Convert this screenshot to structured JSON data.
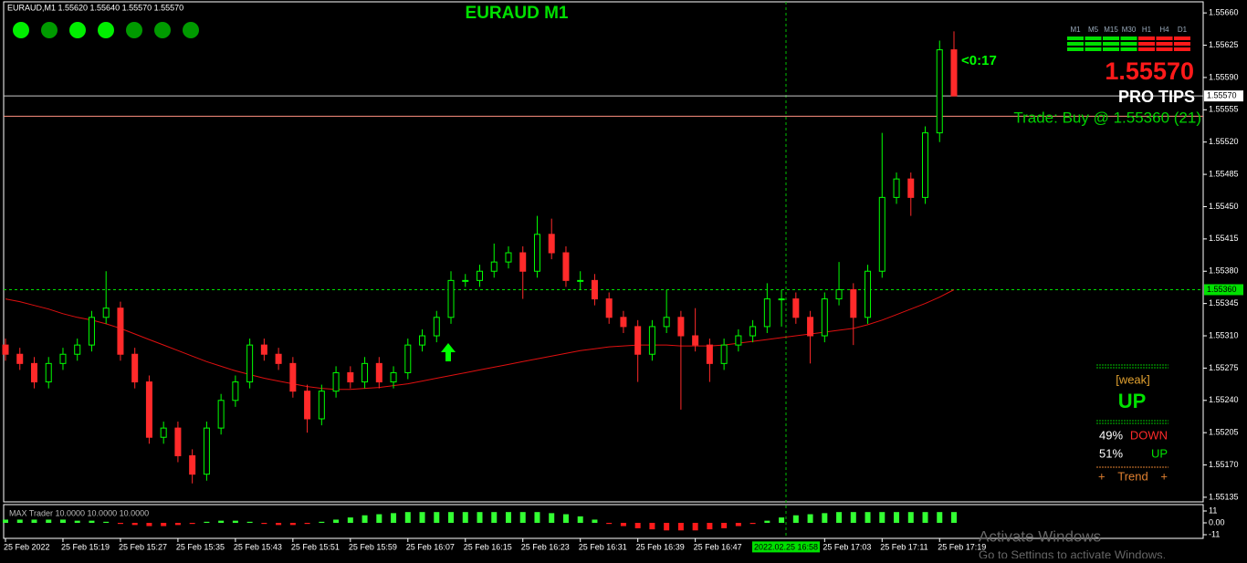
{
  "chart_data": {
    "type": "candlestick",
    "header": "EURAUD,M1  1.55620 1.55640 1.55570 1.55570",
    "title": "EURAUD M1",
    "countdown": "<0:17",
    "price": "1.55570",
    "brand": "PRO TIPS",
    "trade": "Trade: Buy @ 1.55360 (21)",
    "up_color": "#00ff00",
    "down_color": "#ff2a2a",
    "open": [
      1.553,
      1.5529,
      1.5528,
      1.5526,
      1.5528,
      1.5529,
      1.553,
      1.5533,
      1.5534,
      1.5529,
      1.5526,
      1.552,
      1.5521,
      1.5518,
      1.5516,
      1.5521,
      1.5524,
      1.5526,
      1.553,
      1.5529,
      1.5528,
      1.5525,
      1.5522,
      1.5525,
      1.5527,
      1.5526,
      1.5528,
      1.5526,
      1.5527,
      1.553,
      1.5531,
      1.5533,
      1.5537,
      1.5537,
      1.5538,
      1.5539,
      1.554,
      1.5538,
      1.5542,
      1.554,
      1.5537,
      1.5537,
      1.5535,
      1.5533,
      1.5532,
      1.5529,
      1.5532,
      1.5533,
      1.5531,
      1.553,
      1.5528,
      1.553,
      1.5531,
      1.5532,
      1.5535,
      1.5535,
      1.5533,
      1.5531,
      1.5535,
      1.5536,
      1.5533,
      1.5538,
      1.5546,
      1.5548,
      1.5546,
      1.5553,
      1.5562
    ],
    "high": [
      1.55307,
      1.55297,
      1.55287,
      1.55287,
      1.55297,
      1.55307,
      1.55337,
      1.5538,
      1.55347,
      1.55297,
      1.55267,
      1.55217,
      1.55217,
      1.55187,
      1.55217,
      1.55247,
      1.55267,
      1.55307,
      1.55307,
      1.55297,
      1.55287,
      1.55257,
      1.55257,
      1.55277,
      1.55277,
      1.55287,
      1.55287,
      1.55277,
      1.55307,
      1.55317,
      1.55337,
      1.5538,
      1.55377,
      1.55387,
      1.5541,
      1.55407,
      1.55407,
      1.5544,
      1.55437,
      1.55407,
      1.5538,
      1.55377,
      1.55357,
      1.55337,
      1.55327,
      1.55327,
      1.5536,
      1.55337,
      1.5534,
      1.55307,
      1.55307,
      1.55317,
      1.55327,
      1.55367,
      1.5536,
      1.55357,
      1.55337,
      1.55357,
      1.5539,
      1.55367,
      1.55387,
      1.5553,
      1.55487,
      1.55487,
      1.55537,
      1.5563,
      1.5564
    ],
    "low": [
      1.55283,
      1.55273,
      1.55253,
      1.55253,
      1.55273,
      1.55283,
      1.55293,
      1.55323,
      1.55283,
      1.55253,
      1.55193,
      1.55193,
      1.55173,
      1.5515,
      1.55153,
      1.55203,
      1.55233,
      1.55253,
      1.55283,
      1.55273,
      1.55243,
      1.55205,
      1.55213,
      1.55243,
      1.55253,
      1.55253,
      1.55253,
      1.55253,
      1.55263,
      1.55293,
      1.55303,
      1.55323,
      1.55363,
      1.55363,
      1.55373,
      1.55383,
      1.5535,
      1.55373,
      1.55393,
      1.55363,
      1.5536,
      1.55343,
      1.55323,
      1.55313,
      1.5526,
      1.55283,
      1.55313,
      1.5523,
      1.55293,
      1.5526,
      1.55273,
      1.55293,
      1.55303,
      1.55313,
      1.5532,
      1.55323,
      1.5528,
      1.55303,
      1.55343,
      1.553,
      1.55323,
      1.55373,
      1.55453,
      1.5544,
      1.55453,
      1.5552,
      1.5557
    ],
    "close": [
      1.5529,
      1.5528,
      1.5526,
      1.5528,
      1.5529,
      1.553,
      1.5533,
      1.5534,
      1.5529,
      1.5526,
      1.552,
      1.5521,
      1.5518,
      1.5516,
      1.5521,
      1.5524,
      1.5526,
      1.553,
      1.5529,
      1.5528,
      1.5525,
      1.5522,
      1.5525,
      1.5527,
      1.5526,
      1.5528,
      1.5526,
      1.5527,
      1.553,
      1.5531,
      1.5533,
      1.5537,
      1.5537,
      1.5538,
      1.5539,
      1.554,
      1.5538,
      1.5542,
      1.554,
      1.5537,
      1.5537,
      1.5535,
      1.5533,
      1.5532,
      1.5529,
      1.5532,
      1.5533,
      1.5531,
      1.553,
      1.5528,
      1.553,
      1.5531,
      1.5532,
      1.5535,
      1.5535,
      1.5533,
      1.5531,
      1.5535,
      1.5536,
      1.5533,
      1.5538,
      1.5546,
      1.5548,
      1.5546,
      1.5553,
      1.5562,
      1.5557
    ],
    "ma": {
      "color": "#e01010",
      "values": [
        1.5535,
        1.55347,
        1.55343,
        1.55339,
        1.55334,
        1.5533,
        1.55327,
        1.55323,
        1.55318,
        1.55312,
        1.55306,
        1.553,
        1.55294,
        1.55288,
        1.55282,
        1.55277,
        1.55272,
        1.55268,
        1.55264,
        1.55261,
        1.55258,
        1.55255,
        1.55253,
        1.55252,
        1.55252,
        1.55253,
        1.55254,
        1.55256,
        1.55258,
        1.55261,
        1.55264,
        1.55267,
        1.5527,
        1.55273,
        1.55276,
        1.55279,
        1.55282,
        1.55285,
        1.55288,
        1.55291,
        1.55294,
        1.55296,
        1.55298,
        1.55299,
        1.553,
        1.553,
        1.553,
        1.55299,
        1.55299,
        1.55299,
        1.553,
        1.55302,
        1.55304,
        1.55306,
        1.55308,
        1.5531,
        1.55312,
        1.55314,
        1.55316,
        1.55318,
        1.55322,
        1.55327,
        1.55333,
        1.55339,
        1.55345,
        1.55352,
        1.5536
      ]
    },
    "ylim": [
      1.5513,
      1.55674
    ],
    "yticks": [
      {
        "value": 1.5566,
        "label": "1.55660"
      },
      {
        "value": 1.55625,
        "label": "1.55625"
      },
      {
        "value": 1.5559,
        "label": "1.55590"
      },
      {
        "value": 1.55555,
        "label": "1.55555"
      },
      {
        "value": 1.5552,
        "label": "1.55520"
      },
      {
        "value": 1.55485,
        "label": "1.55485"
      },
      {
        "value": 1.5545,
        "label": "1.55450"
      },
      {
        "value": 1.55415,
        "label": "1.55415"
      },
      {
        "value": 1.5538,
        "label": "1.55380"
      },
      {
        "value": 1.55345,
        "label": "1.55345"
      },
      {
        "value": 1.5531,
        "label": "1.55310"
      },
      {
        "value": 1.55275,
        "label": "1.55275"
      },
      {
        "value": 1.5524,
        "label": "1.55240"
      },
      {
        "value": 1.55205,
        "label": "1.55205"
      },
      {
        "value": 1.5517,
        "label": "1.55170"
      },
      {
        "value": 1.55135,
        "label": "1.55135"
      }
    ],
    "xticks": [
      {
        "value": 0,
        "label": "25 Feb 2022"
      },
      {
        "value": 4,
        "label": "25 Feb 15:19"
      },
      {
        "value": 8,
        "label": "25 Feb 15:27"
      },
      {
        "value": 12,
        "label": "25 Feb 15:35"
      },
      {
        "value": 16,
        "label": "25 Feb 15:43"
      },
      {
        "value": 20,
        "label": "25 Feb 15:51"
      },
      {
        "value": 24,
        "label": "25 Feb 15:59"
      },
      {
        "value": 28,
        "label": "25 Feb 16:07"
      },
      {
        "value": 32,
        "label": "25 Feb 16:15"
      },
      {
        "value": 36,
        "label": "25 Feb 16:23"
      },
      {
        "value": 40,
        "label": "25 Feb 16:31"
      },
      {
        "value": 44,
        "label": "25 Feb 16:39"
      },
      {
        "value": 48,
        "label": "25 Feb 16:47"
      },
      {
        "value": 57,
        "label": "25 Feb 17:03"
      },
      {
        "value": 61,
        "label": "25 Feb 17:11"
      },
      {
        "value": 65,
        "label": "25 Feb 17:19"
      }
    ],
    "cursor_time": "2022.02.25 16:58",
    "levels": [
      {
        "value": 1.5557,
        "label": "1.55570",
        "color": "#c8c8c8"
      },
      {
        "value": 1.5536,
        "label": "1.55360",
        "color": "#00e000",
        "dashed": true
      },
      {
        "value": 1.55548,
        "color": "#ff9080"
      }
    ],
    "dots": [
      "#00ee00",
      "#009a00",
      "#00ee00",
      "#00ee00",
      "#009a00",
      "#009a00",
      "#009a00"
    ],
    "timeframes": [
      {
        "name": "M1",
        "color": "#00e000"
      },
      {
        "name": "M5",
        "color": "#00e000"
      },
      {
        "name": "M15",
        "color": "#00e000"
      },
      {
        "name": "M30",
        "color": "#00e000"
      },
      {
        "name": "H1",
        "color": "#ff1a1a"
      },
      {
        "name": "H4",
        "color": "#ff1a1a"
      },
      {
        "name": "D1",
        "color": "#ff1a1a"
      }
    ],
    "strength": {
      "state": "[weak]",
      "direction": "UP",
      "rows": [
        {
          "pct": "49%",
          "label": "DOWN",
          "color": "#ff2a2a"
        },
        {
          "pct": "51%",
          "label": "UP",
          "color": "#00e000"
        }
      ],
      "trend": [
        "+",
        "Trend",
        "+"
      ]
    },
    "oscillator": {
      "label": "MAX Trader 10.0000 10.0000 10.0000",
      "pos_color": "#33ff33",
      "neg_color": "#ff1a1a",
      "ylim": [
        -11,
        11
      ],
      "yticks": [
        11,
        {
          "value": 0,
          "label": "0.00"
        },
        -11
      ],
      "values": [
        3,
        3,
        3,
        3,
        3,
        2,
        2,
        1,
        -1,
        -2,
        -3,
        -3,
        -2,
        -1,
        1,
        2,
        2,
        1,
        -1,
        -2,
        -2,
        -1,
        1,
        3,
        5,
        7,
        8,
        9,
        10,
        10,
        10,
        10,
        10,
        10,
        10,
        10,
        10,
        10,
        9,
        8,
        6,
        3,
        -1,
        -3,
        -5,
        -6,
        -7,
        -7,
        -7,
        -6,
        -5,
        -3,
        -1,
        2,
        5,
        7,
        8,
        9,
        10,
        10,
        10,
        10,
        10,
        10,
        10,
        10,
        10
      ]
    },
    "watermark": [
      "Activate Windows",
      "Go to Settings to activate Windows."
    ]
  }
}
